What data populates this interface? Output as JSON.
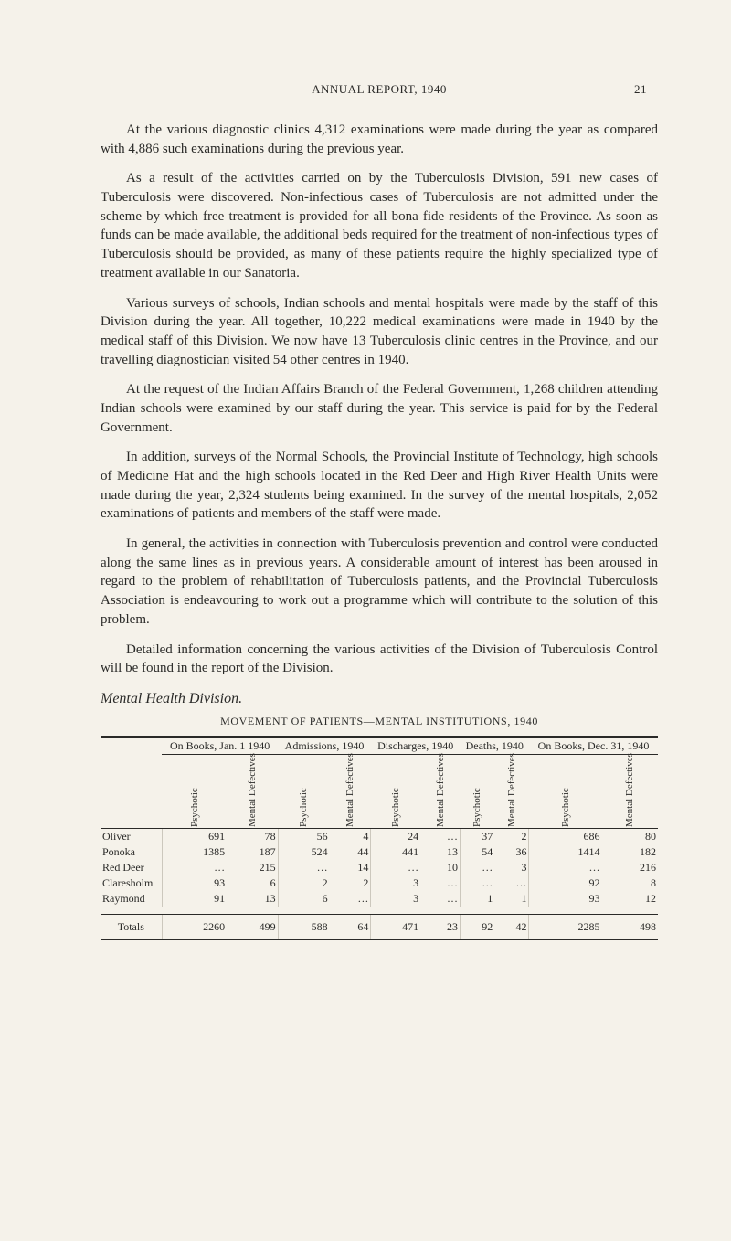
{
  "header": {
    "running_title": "ANNUAL REPORT, 1940",
    "page_number": "21"
  },
  "paragraphs": {
    "p1": "At the various diagnostic clinics 4,312 examinations were made during the year as compared with 4,886 such examinations during the previous year.",
    "p2": "As a result of the activities carried on by the Tuberculosis Division, 591 new cases of Tuberculosis were discovered. Non-infectious cases of Tuberculosis are not admitted under the scheme by which free treatment is provided for all bona fide residents of the Province. As soon as funds can be made available, the additional beds required for the treatment of non-infectious types of Tuberculosis should be provided, as many of these patients require the highly specialized type of treatment available in our Sanatoria.",
    "p3": "Various surveys of schools, Indian schools and mental hospitals were made by the staff of this Division during the year. All together, 10,222 medical examinations were made in 1940 by the medical staff of this Division. We now have 13 Tuberculosis clinic centres in the Province, and our travelling diagnostician visited 54 other centres in 1940.",
    "p4": "At the request of the Indian Affairs Branch of the Federal Government, 1,268 children attending Indian schools were examined by our staff during the year. This service is paid for by the Federal Government.",
    "p5": "In addition, surveys of the Normal Schools, the Provincial Institute of Technology, high schools of Medicine Hat and the high schools located in the Red Deer and High River Health Units were made during the year, 2,324 students being examined. In the survey of the mental hospitals, 2,052 examinations of patients and members of the staff were made.",
    "p6": "In general, the activities in connection with Tuberculosis prevention and control were conducted along the same lines as in previous years. A considerable amount of interest has been aroused in regard to the problem of rehabilitation of Tuberculosis patients, and the Provincial Tuberculosis Association is endeavouring to work out a programme which will contribute to the solution of this problem.",
    "p7": "Detailed information concerning the various activities of the Division of Tuberculosis Control will be found in the report of the Division."
  },
  "section": {
    "title": "Mental Health Division."
  },
  "table": {
    "caption": "MOVEMENT OF PATIENTS—MENTAL INSTITUTIONS, 1940",
    "groups": [
      "On Books, Jan. 1 1940",
      "Admissions, 1940",
      "Discharges, 1940",
      "Deaths, 1940",
      "On Books, Dec. 31, 1940"
    ],
    "subcols": {
      "psychotic": "Psychotic",
      "mental_defectives": "Mental Defectives"
    },
    "rows": [
      {
        "label": "Oliver",
        "vals": [
          "691",
          "78",
          "56",
          "4",
          "24",
          "…",
          "37",
          "2",
          "686",
          "80"
        ]
      },
      {
        "label": "Ponoka",
        "vals": [
          "1385",
          "187",
          "524",
          "44",
          "441",
          "13",
          "54",
          "36",
          "1414",
          "182"
        ]
      },
      {
        "label": "Red Deer",
        "vals": [
          "…",
          "215",
          "…",
          "14",
          "…",
          "10",
          "…",
          "3",
          "…",
          "216"
        ]
      },
      {
        "label": "Claresholm",
        "vals": [
          "93",
          "6",
          "2",
          "2",
          "3",
          "…",
          "…",
          "…",
          "92",
          "8"
        ]
      },
      {
        "label": "Raymond",
        "vals": [
          "91",
          "13",
          "6",
          "…",
          "3",
          "…",
          "1",
          "1",
          "93",
          "12"
        ]
      }
    ],
    "totals": {
      "label": "Totals",
      "vals": [
        "2260",
        "499",
        "588",
        "64",
        "471",
        "23",
        "92",
        "42",
        "2285",
        "498"
      ]
    }
  }
}
